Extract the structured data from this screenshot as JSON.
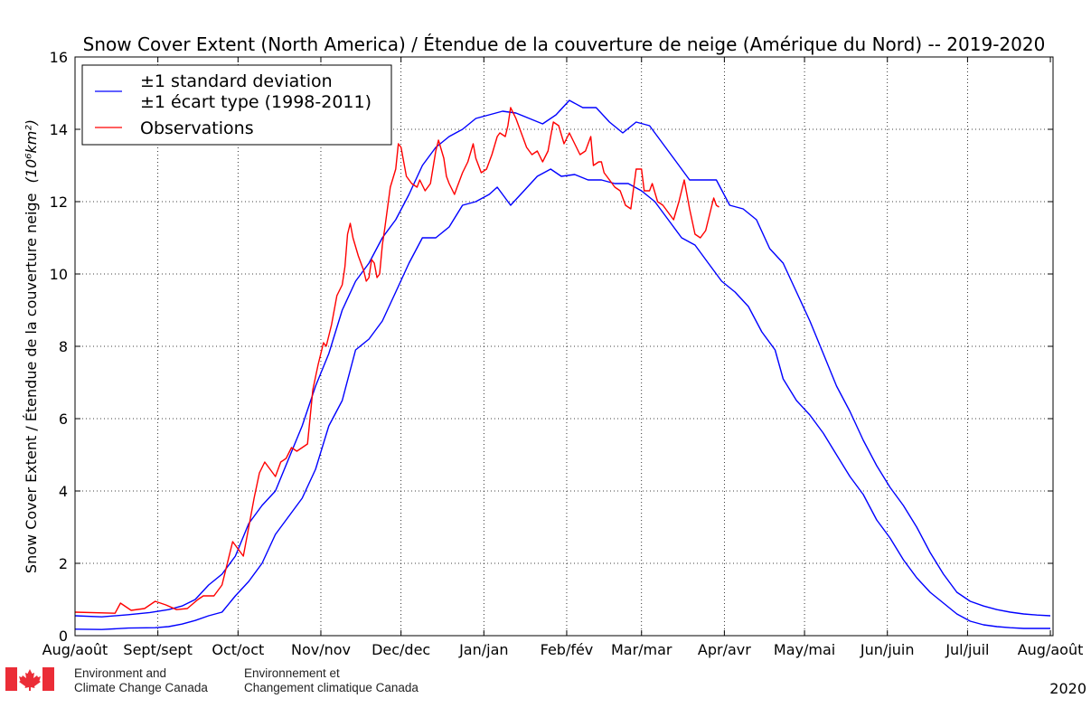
{
  "chart_data": {
    "type": "line",
    "title": "Snow Cover Extent (North America) / Étendue de la couverture de neige (Amérique du Nord) -- 2019-2020",
    "xlabel": "",
    "ylabel": "Snow Cover Extent / Étendue de la couverture neige",
    "ylabel_units": "(10⁶km²)",
    "x_unit": "days since Aug 1",
    "xlim": [
      0,
      366
    ],
    "ylim": [
      0,
      16
    ],
    "yticks": [
      0,
      2,
      4,
      6,
      8,
      10,
      12,
      14,
      16
    ],
    "xticks": [
      {
        "x": 0,
        "label": "Aug/août"
      },
      {
        "x": 31,
        "label": "Sept/sept"
      },
      {
        "x": 61,
        "label": "Oct/oct"
      },
      {
        "x": 92,
        "label": "Nov/nov"
      },
      {
        "x": 122,
        "label": "Dec/dec"
      },
      {
        "x": 153,
        "label": "Jan/jan"
      },
      {
        "x": 184,
        "label": "Feb/fév"
      },
      {
        "x": 212,
        "label": "Mar/mar"
      },
      {
        "x": 243,
        "label": "Apr/avr"
      },
      {
        "x": 273,
        "label": "May/mai"
      },
      {
        "x": 304,
        "label": "Jun/juin"
      },
      {
        "x": 334,
        "label": "Jul/juil"
      },
      {
        "x": 365,
        "label": "Aug/août"
      }
    ],
    "grid": true,
    "legend_position": "top-left",
    "legend": [
      {
        "label_line1": "±1 standard deviation",
        "label_line2": "±1 écart type (1998-2011)",
        "color": "#0000ff"
      },
      {
        "label_line1": "Observations",
        "color": "#ff0000"
      }
    ],
    "series": [
      {
        "name": "±1 standard deviation (upper)",
        "color": "#0000ff",
        "points": [
          [
            0,
            0.55
          ],
          [
            10,
            0.52
          ],
          [
            20,
            0.58
          ],
          [
            28,
            0.64
          ],
          [
            35,
            0.72
          ],
          [
            40,
            0.82
          ],
          [
            45,
            1.0
          ],
          [
            50,
            1.4
          ],
          [
            55,
            1.7
          ],
          [
            60,
            2.2
          ],
          [
            65,
            3.1
          ],
          [
            70,
            3.6
          ],
          [
            75,
            4.0
          ],
          [
            80,
            4.9
          ],
          [
            85,
            5.8
          ],
          [
            90,
            6.9
          ],
          [
            95,
            7.8
          ],
          [
            100,
            9.0
          ],
          [
            105,
            9.8
          ],
          [
            110,
            10.3
          ],
          [
            115,
            11.0
          ],
          [
            120,
            11.5
          ],
          [
            125,
            12.2
          ],
          [
            130,
            13.0
          ],
          [
            135,
            13.5
          ],
          [
            140,
            13.8
          ],
          [
            145,
            14.0
          ],
          [
            150,
            14.3
          ],
          [
            155,
            14.4
          ],
          [
            160,
            14.5
          ],
          [
            165,
            14.45
          ],
          [
            170,
            14.3
          ],
          [
            175,
            14.15
          ],
          [
            180,
            14.4
          ],
          [
            185,
            14.8
          ],
          [
            190,
            14.6
          ],
          [
            195,
            14.6
          ],
          [
            200,
            14.2
          ],
          [
            205,
            13.9
          ],
          [
            210,
            14.2
          ],
          [
            215,
            14.1
          ],
          [
            220,
            13.6
          ],
          [
            225,
            13.1
          ],
          [
            230,
            12.6
          ],
          [
            235,
            12.6
          ],
          [
            240,
            12.6
          ],
          [
            245,
            11.9
          ],
          [
            250,
            11.8
          ],
          [
            255,
            11.5
          ],
          [
            260,
            10.7
          ],
          [
            265,
            10.3
          ],
          [
            270,
            9.5
          ],
          [
            275,
            8.7
          ],
          [
            280,
            7.8
          ],
          [
            285,
            6.9
          ],
          [
            290,
            6.2
          ],
          [
            295,
            5.4
          ],
          [
            300,
            4.7
          ],
          [
            305,
            4.1
          ],
          [
            310,
            3.6
          ],
          [
            315,
            3.0
          ],
          [
            320,
            2.3
          ],
          [
            325,
            1.7
          ],
          [
            330,
            1.2
          ],
          [
            335,
            0.95
          ],
          [
            340,
            0.82
          ],
          [
            345,
            0.72
          ],
          [
            350,
            0.65
          ],
          [
            355,
            0.6
          ],
          [
            360,
            0.57
          ],
          [
            365,
            0.55
          ]
        ]
      },
      {
        "name": "±1 standard deviation (lower)",
        "color": "#0000ff",
        "points": [
          [
            0,
            0.18
          ],
          [
            10,
            0.17
          ],
          [
            20,
            0.21
          ],
          [
            30,
            0.22
          ],
          [
            35,
            0.25
          ],
          [
            40,
            0.32
          ],
          [
            45,
            0.42
          ],
          [
            50,
            0.55
          ],
          [
            55,
            0.65
          ],
          [
            60,
            1.1
          ],
          [
            65,
            1.5
          ],
          [
            70,
            2.0
          ],
          [
            75,
            2.8
          ],
          [
            80,
            3.3
          ],
          [
            85,
            3.8
          ],
          [
            90,
            4.6
          ],
          [
            95,
            5.8
          ],
          [
            100,
            6.5
          ],
          [
            105,
            7.9
          ],
          [
            110,
            8.2
          ],
          [
            115,
            8.7
          ],
          [
            120,
            9.5
          ],
          [
            125,
            10.3
          ],
          [
            130,
            11.0
          ],
          [
            135,
            11.0
          ],
          [
            140,
            11.3
          ],
          [
            145,
            11.9
          ],
          [
            150,
            12.0
          ],
          [
            155,
            12.2
          ],
          [
            158,
            12.4
          ],
          [
            163,
            11.9
          ],
          [
            168,
            12.3
          ],
          [
            173,
            12.7
          ],
          [
            178,
            12.9
          ],
          [
            182,
            12.7
          ],
          [
            187,
            12.75
          ],
          [
            192,
            12.6
          ],
          [
            197,
            12.6
          ],
          [
            202,
            12.5
          ],
          [
            207,
            12.5
          ],
          [
            212,
            12.3
          ],
          [
            217,
            12.0
          ],
          [
            222,
            11.5
          ],
          [
            227,
            11.0
          ],
          [
            232,
            10.8
          ],
          [
            237,
            10.3
          ],
          [
            242,
            9.8
          ],
          [
            247,
            9.5
          ],
          [
            252,
            9.1
          ],
          [
            257,
            8.4
          ],
          [
            262,
            7.9
          ],
          [
            265,
            7.1
          ],
          [
            270,
            6.5
          ],
          [
            275,
            6.1
          ],
          [
            280,
            5.6
          ],
          [
            285,
            5.0
          ],
          [
            290,
            4.4
          ],
          [
            295,
            3.9
          ],
          [
            300,
            3.2
          ],
          [
            305,
            2.7
          ],
          [
            310,
            2.1
          ],
          [
            315,
            1.6
          ],
          [
            320,
            1.2
          ],
          [
            325,
            0.9
          ],
          [
            330,
            0.6
          ],
          [
            335,
            0.4
          ],
          [
            340,
            0.3
          ],
          [
            345,
            0.25
          ],
          [
            350,
            0.22
          ],
          [
            355,
            0.2
          ],
          [
            360,
            0.2
          ],
          [
            365,
            0.2
          ]
        ]
      },
      {
        "name": "Observations",
        "color": "#ff0000",
        "points": [
          [
            0,
            0.65
          ],
          [
            15,
            0.62
          ],
          [
            17,
            0.9
          ],
          [
            19,
            0.8
          ],
          [
            21,
            0.7
          ],
          [
            26,
            0.75
          ],
          [
            30,
            0.95
          ],
          [
            34,
            0.85
          ],
          [
            38,
            0.72
          ],
          [
            42,
            0.75
          ],
          [
            46,
            1.0
          ],
          [
            48,
            1.1
          ],
          [
            52,
            1.1
          ],
          [
            55,
            1.4
          ],
          [
            57,
            2.0
          ],
          [
            59,
            2.6
          ],
          [
            61,
            2.4
          ],
          [
            63,
            2.2
          ],
          [
            65,
            3.0
          ],
          [
            67,
            3.8
          ],
          [
            69,
            4.5
          ],
          [
            71,
            4.8
          ],
          [
            73,
            4.6
          ],
          [
            75,
            4.4
          ],
          [
            77,
            4.8
          ],
          [
            79,
            4.9
          ],
          [
            81,
            5.2
          ],
          [
            83,
            5.1
          ],
          [
            85,
            5.2
          ],
          [
            87,
            5.3
          ],
          [
            89,
            6.8
          ],
          [
            91,
            7.5
          ],
          [
            93,
            8.1
          ],
          [
            94,
            8.0
          ],
          [
            96,
            8.6
          ],
          [
            98,
            9.4
          ],
          [
            100,
            9.7
          ],
          [
            101,
            10.2
          ],
          [
            102,
            11.1
          ],
          [
            103,
            11.4
          ],
          [
            104,
            11.0
          ],
          [
            106,
            10.5
          ],
          [
            108,
            10.1
          ],
          [
            109,
            9.8
          ],
          [
            110,
            9.9
          ],
          [
            111,
            10.4
          ],
          [
            112,
            10.3
          ],
          [
            113,
            9.9
          ],
          [
            114,
            10.0
          ],
          [
            115,
            10.8
          ],
          [
            116,
            11.3
          ],
          [
            118,
            12.4
          ],
          [
            120,
            12.9
          ],
          [
            121,
            13.6
          ],
          [
            122,
            13.5
          ],
          [
            124,
            12.7
          ],
          [
            126,
            12.5
          ],
          [
            128,
            12.4
          ],
          [
            129,
            12.6
          ],
          [
            131,
            12.3
          ],
          [
            133,
            12.5
          ],
          [
            135,
            13.4
          ],
          [
            136,
            13.7
          ],
          [
            138,
            13.2
          ],
          [
            139,
            12.7
          ],
          [
            140,
            12.5
          ],
          [
            142,
            12.2
          ],
          [
            143,
            12.4
          ],
          [
            145,
            12.8
          ],
          [
            147,
            13.1
          ],
          [
            149,
            13.6
          ],
          [
            150,
            13.2
          ],
          [
            152,
            12.8
          ],
          [
            154,
            12.9
          ],
          [
            156,
            13.3
          ],
          [
            158,
            13.8
          ],
          [
            159,
            13.9
          ],
          [
            161,
            13.8
          ],
          [
            162,
            14.1
          ],
          [
            163,
            14.6
          ],
          [
            165,
            14.3
          ],
          [
            167,
            13.9
          ],
          [
            169,
            13.5
          ],
          [
            171,
            13.3
          ],
          [
            173,
            13.4
          ],
          [
            175,
            13.1
          ],
          [
            177,
            13.4
          ],
          [
            178,
            13.8
          ],
          [
            179,
            14.2
          ],
          [
            181,
            14.1
          ],
          [
            183,
            13.6
          ],
          [
            185,
            13.9
          ],
          [
            187,
            13.6
          ],
          [
            189,
            13.3
          ],
          [
            191,
            13.4
          ],
          [
            193,
            13.8
          ],
          [
            194,
            13.0
          ],
          [
            196,
            13.1
          ],
          [
            197,
            13.1
          ],
          [
            198,
            12.8
          ],
          [
            200,
            12.6
          ],
          [
            202,
            12.4
          ],
          [
            204,
            12.3
          ],
          [
            206,
            11.9
          ],
          [
            208,
            11.8
          ],
          [
            210,
            12.9
          ],
          [
            212,
            12.9
          ],
          [
            213,
            12.3
          ],
          [
            215,
            12.3
          ],
          [
            216,
            12.5
          ],
          [
            218,
            12.0
          ],
          [
            220,
            11.9
          ],
          [
            222,
            11.7
          ],
          [
            224,
            11.5
          ],
          [
            226,
            12.0
          ],
          [
            228,
            12.6
          ],
          [
            230,
            11.8
          ],
          [
            232,
            11.1
          ],
          [
            234,
            11.0
          ],
          [
            236,
            11.2
          ],
          [
            238,
            11.8
          ],
          [
            239,
            12.1
          ],
          [
            240,
            11.9
          ],
          [
            241,
            11.85
          ]
        ]
      }
    ]
  },
  "footer": {
    "org_en_line1": "Environment and",
    "org_en_line2": "Climate Change Canada",
    "org_fr_line1": "Environnement et",
    "org_fr_line2": "Changement climatique Canada",
    "year": "2020",
    "flag_icon": "canada-flag-icon",
    "flag_color": "#eb2d37"
  }
}
